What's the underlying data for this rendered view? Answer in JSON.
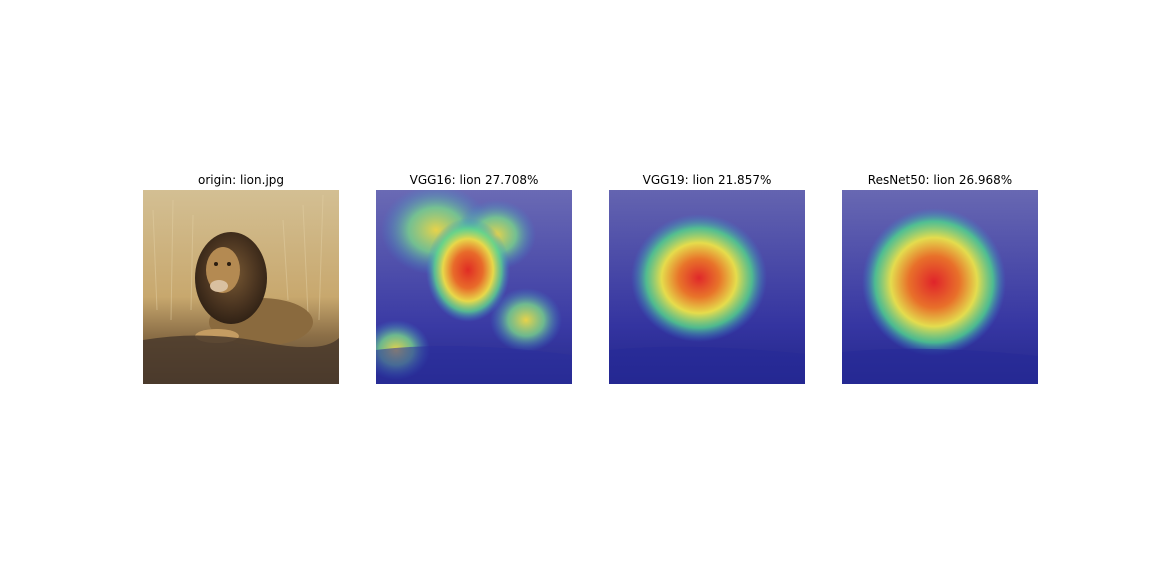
{
  "panels": [
    {
      "title": "origin: lion.jpg",
      "kind": "photo"
    },
    {
      "title": "VGG16: lion 27.708%",
      "kind": "heatmap-vgg16"
    },
    {
      "title": "VGG19: lion 21.857%",
      "kind": "heatmap-vgg19"
    },
    {
      "title": "ResNet50: lion 26.968%",
      "kind": "heatmap-resnet50"
    }
  ],
  "colors": {
    "background": "#ffffff",
    "photo_sky": "#cdb88e",
    "photo_grass": "#c2a36a",
    "photo_ground": "#5a4633",
    "heat_low": "#2a2c9e",
    "heat_mid": "#48d08a",
    "heat_high": "#e1262a"
  }
}
